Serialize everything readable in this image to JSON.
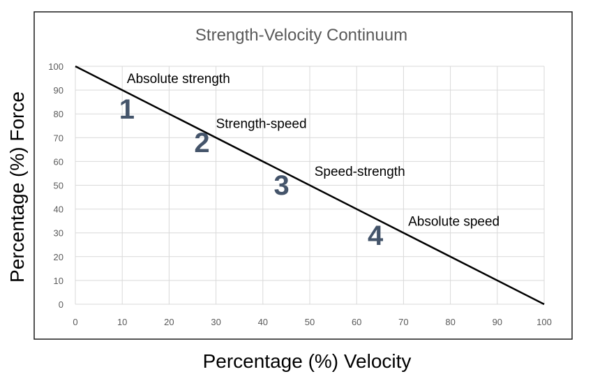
{
  "chart_data": {
    "type": "line",
    "title": "Strength-Velocity Continuum",
    "xlabel": "Percentage (%) Velocity",
    "ylabel": "Percentage (%) Force",
    "xlim": [
      0,
      100
    ],
    "ylim": [
      0,
      100
    ],
    "xticks": [
      "0",
      "10",
      "20",
      "30",
      "40",
      "50",
      "60",
      "70",
      "80",
      "90",
      "100"
    ],
    "yticks": [
      "0",
      "10",
      "20",
      "30",
      "40",
      "50",
      "60",
      "70",
      "80",
      "90",
      "100"
    ],
    "grid": true,
    "series": [
      {
        "x": [
          0,
          100
        ],
        "y": [
          100,
          0
        ]
      }
    ],
    "annotations": [
      {
        "text": "Absolute strength",
        "x": 11,
        "y": 93
      },
      {
        "text": "Strength-speed",
        "x": 30,
        "y": 74
      },
      {
        "text": "Speed-strength",
        "x": 51,
        "y": 54
      },
      {
        "text": "Absolute speed",
        "x": 71,
        "y": 33
      }
    ],
    "zones": [
      {
        "text": "1",
        "x": 11,
        "y": 78
      },
      {
        "text": "2",
        "x": 27,
        "y": 64
      },
      {
        "text": "3",
        "x": 44,
        "y": 46
      },
      {
        "text": "4",
        "x": 64,
        "y": 25
      }
    ]
  }
}
